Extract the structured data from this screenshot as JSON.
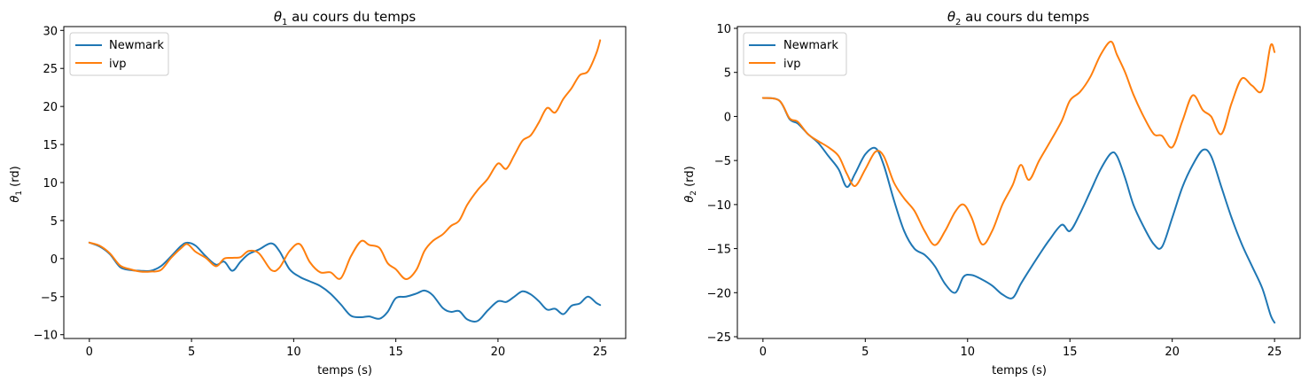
{
  "chart_data": [
    {
      "type": "line",
      "title_var": "θ",
      "title_sub": "1",
      "title_rest": " au cours du temps",
      "xlabel": "temps (s)",
      "ylabel_var": "θ",
      "ylabel_sub": "1",
      "ylabel_rest": " (rd)",
      "xlim": [
        -1.25,
        26.25
      ],
      "ylim": [
        -10.5,
        30.5
      ],
      "xticks": [
        0,
        5,
        10,
        15,
        20,
        25
      ],
      "yticks": [
        -10,
        -5,
        0,
        5,
        10,
        15,
        20,
        25,
        30
      ],
      "legend_position": "top-left",
      "series": [
        {
          "name": "Newmark",
          "color": "#1f77b4",
          "x": [
            0,
            0.5,
            1,
            1.5,
            2,
            2.5,
            3,
            3.5,
            4,
            4.5,
            4.8,
            5.2,
            5.7,
            6.2,
            6.6,
            7,
            7.4,
            7.8,
            8.3,
            8.9,
            9.3,
            9.8,
            10.3,
            10.8,
            11.3,
            11.8,
            12.3,
            12.8,
            13.3,
            13.7,
            14.2,
            14.6,
            15,
            15.5,
            16,
            16.4,
            16.8,
            17.3,
            17.7,
            18.1,
            18.5,
            19,
            19.5,
            20,
            20.4,
            20.8,
            21.2,
            21.6,
            22,
            22.4,
            22.8,
            23.2,
            23.6,
            24,
            24.4,
            24.8,
            25
          ],
          "y": [
            2.1,
            1.6,
            0.6,
            -1.1,
            -1.5,
            -1.6,
            -1.6,
            -1.0,
            0.3,
            1.7,
            2.1,
            1.7,
            0.3,
            -0.8,
            -0.4,
            -1.6,
            -0.4,
            0.6,
            1.2,
            2.0,
            1.0,
            -1.4,
            -2.4,
            -3.0,
            -3.6,
            -4.6,
            -6.0,
            -7.5,
            -7.7,
            -7.6,
            -7.9,
            -7.0,
            -5.2,
            -5.0,
            -4.6,
            -4.2,
            -4.8,
            -6.5,
            -7.0,
            -6.9,
            -8.0,
            -8.2,
            -6.8,
            -5.6,
            -5.7,
            -5.0,
            -4.3,
            -4.7,
            -5.6,
            -6.7,
            -6.6,
            -7.3,
            -6.2,
            -5.9,
            -5.0,
            -5.8,
            -6.1
          ]
        },
        {
          "name": "ivp",
          "color": "#ff7f0e",
          "x": [
            0,
            0.5,
            1,
            1.5,
            2,
            2.5,
            3,
            3.5,
            4,
            4.5,
            4.8,
            5.2,
            5.7,
            6.2,
            6.6,
            7,
            7.4,
            7.8,
            8.3,
            8.9,
            9.3,
            9.8,
            10.3,
            10.8,
            11.3,
            11.8,
            12.3,
            12.8,
            13.3,
            13.7,
            14.2,
            14.6,
            15,
            15.5,
            16,
            16.4,
            16.8,
            17.3,
            17.7,
            18.1,
            18.5,
            19,
            19.5,
            20,
            20.4,
            20.8,
            21.2,
            21.6,
            22,
            22.4,
            22.8,
            23.2,
            23.6,
            24,
            24.4,
            24.8,
            25
          ],
          "y": [
            2.1,
            1.7,
            0.7,
            -0.9,
            -1.4,
            -1.7,
            -1.7,
            -1.5,
            0.1,
            1.4,
            1.9,
            0.9,
            0.1,
            -1.0,
            0.0,
            0.1,
            0.2,
            1.0,
            0.7,
            -1.5,
            -1.2,
            1.0,
            1.9,
            -0.5,
            -1.8,
            -1.8,
            -2.6,
            0.3,
            2.3,
            1.8,
            1.4,
            -0.6,
            -1.4,
            -2.7,
            -1.5,
            1.0,
            2.3,
            3.2,
            4.3,
            5.0,
            7.1,
            9.0,
            10.5,
            12.5,
            11.8,
            13.6,
            15.5,
            16.2,
            17.9,
            19.8,
            19.2,
            21.0,
            22.4,
            24.1,
            24.6,
            26.9,
            28.7
          ]
        }
      ]
    },
    {
      "type": "line",
      "title_var": "θ",
      "title_sub": "2",
      "title_rest": " au cours du temps",
      "xlabel": "temps (s)",
      "ylabel_var": "θ",
      "ylabel_sub": "2",
      "ylabel_rest": " (rd)",
      "xlim": [
        -1.25,
        26.25
      ],
      "ylim": [
        -25.2,
        10.2
      ],
      "xticks": [
        0,
        5,
        10,
        15,
        20,
        25
      ],
      "yticks": [
        -25,
        -20,
        -15,
        -10,
        -5,
        0,
        5,
        10
      ],
      "legend_position": "top-left",
      "series": [
        {
          "name": "Newmark",
          "color": "#1f77b4",
          "x": [
            0,
            0.8,
            1.3,
            1.7,
            2.2,
            2.7,
            3.2,
            3.7,
            4.1,
            4.5,
            5,
            5.5,
            5.9,
            6.4,
            6.9,
            7.4,
            7.9,
            8.4,
            8.9,
            9.4,
            9.8,
            10.2,
            10.7,
            11.2,
            11.7,
            12.2,
            12.6,
            13,
            13.5,
            14,
            14.6,
            15,
            15.5,
            16,
            16.5,
            17,
            17.3,
            17.7,
            18.1,
            18.6,
            19.1,
            19.5,
            20,
            20.5,
            21,
            21.5,
            21.9,
            22.4,
            22.9,
            23.4,
            23.9,
            24.4,
            24.8,
            25
          ],
          "y": [
            2.1,
            1.8,
            -0.3,
            -0.8,
            -2.0,
            -3.0,
            -4.5,
            -6.0,
            -8.0,
            -6.5,
            -4.3,
            -3.6,
            -5.5,
            -9.5,
            -13.0,
            -15.0,
            -15.7,
            -17.0,
            -19.0,
            -20.0,
            -18.2,
            -18.0,
            -18.5,
            -19.2,
            -20.2,
            -20.6,
            -19.0,
            -17.5,
            -15.7,
            -14.0,
            -12.3,
            -13.0,
            -11.0,
            -8.5,
            -6.0,
            -4.2,
            -4.5,
            -7.0,
            -10.0,
            -12.5,
            -14.5,
            -14.8,
            -11.5,
            -8.0,
            -5.5,
            -3.8,
            -4.5,
            -8.0,
            -11.5,
            -14.5,
            -17.0,
            -19.5,
            -22.5,
            -23.4
          ]
        },
        {
          "name": "ivp",
          "color": "#ff7f0e",
          "x": [
            0,
            0.8,
            1.3,
            1.7,
            2.2,
            2.7,
            3.2,
            3.7,
            4.1,
            4.5,
            5,
            5.5,
            5.9,
            6.4,
            6.9,
            7.4,
            7.9,
            8.4,
            8.9,
            9.4,
            9.8,
            10.2,
            10.7,
            11.2,
            11.7,
            12.2,
            12.6,
            13,
            13.5,
            14,
            14.6,
            15,
            15.5,
            16,
            16.5,
            17,
            17.3,
            17.7,
            18.1,
            18.6,
            19.1,
            19.5,
            20,
            20.5,
            21,
            21.5,
            21.9,
            22.4,
            22.9,
            23.4,
            23.9,
            24.4,
            24.8,
            25
          ],
          "y": [
            2.1,
            1.8,
            -0.2,
            -0.6,
            -2.0,
            -2.8,
            -3.5,
            -4.5,
            -6.5,
            -7.9,
            -6.0,
            -4.0,
            -4.5,
            -7.5,
            -9.3,
            -10.7,
            -13.0,
            -14.6,
            -13.0,
            -10.8,
            -10.0,
            -11.5,
            -14.5,
            -13.0,
            -10.0,
            -7.8,
            -5.5,
            -7.2,
            -5.0,
            -3.0,
            -0.5,
            1.8,
            2.8,
            4.5,
            7.0,
            8.5,
            7.0,
            5.0,
            2.5,
            0.0,
            -2.0,
            -2.2,
            -3.5,
            -0.5,
            2.4,
            0.7,
            0.0,
            -2.0,
            1.5,
            4.3,
            3.5,
            3.0,
            8.0,
            7.3
          ]
        }
      ]
    }
  ]
}
